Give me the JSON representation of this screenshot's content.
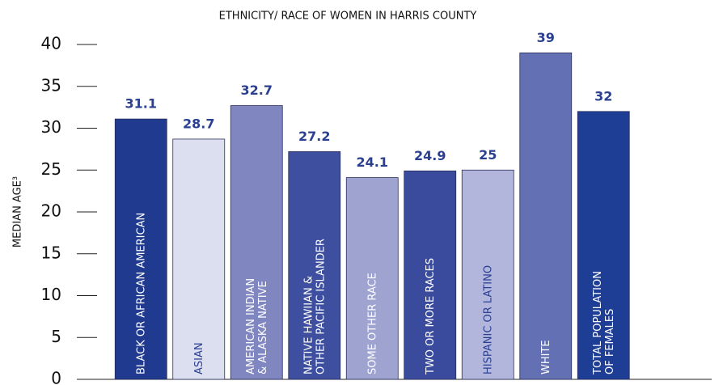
{
  "chart_data": {
    "type": "bar",
    "title": "ETHNICITY/ RACE OF WOMEN IN HARRIS COUNTY",
    "y_label": "MEDIAN AGE³",
    "categories": [
      "BLACK OR AFRICAN AMERICAN",
      "ASIAN",
      "AMERICAN INDIAN\n& ALASKA NATIVE",
      "NATIVE HAWIIAN &\nOTHER PACIFIC ISLANDER",
      "SOME OTHER RACE",
      "TWO OR MORE RACES",
      "HISPANIC OR LATINO",
      "WHITE",
      "TOTAL POPULATION\nOF FEMALES"
    ],
    "values": [
      31.1,
      28.7,
      32.7,
      27.2,
      24.1,
      24.9,
      25,
      39,
      32
    ],
    "colors": [
      "#1f3a8f",
      "#dcdff0",
      "#7f86c0",
      "#3e4f9f",
      "#9fa3d0",
      "#3a4a9c",
      "#b3b6dc",
      "#6470b4",
      "#1e3d94"
    ],
    "ylim": [
      0,
      40
    ],
    "yticks": [
      0,
      5,
      10,
      15,
      20,
      25,
      30,
      35,
      40
    ]
  }
}
